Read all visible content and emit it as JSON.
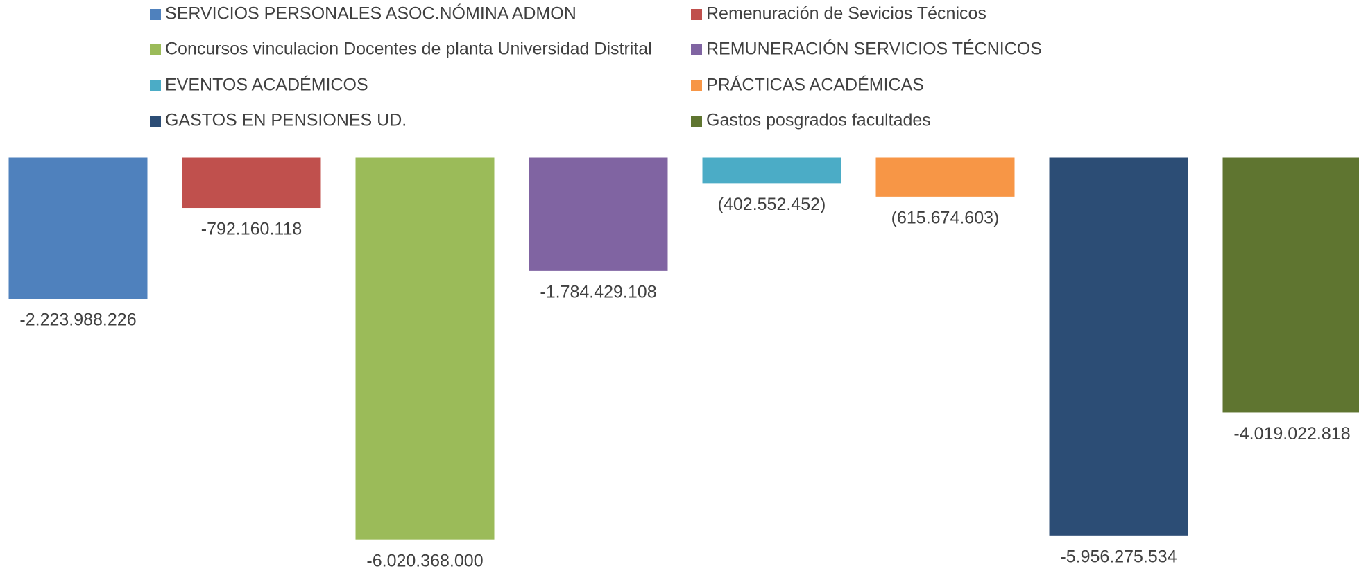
{
  "chart_data": {
    "type": "bar",
    "series": [
      {
        "name": "SERVICIOS PERSONALES ASOC.NÓMINA ADMON",
        "color": "#4f81bd",
        "values": [
          -2223988226
        ],
        "value_labels": [
          "-2.223.988.226"
        ]
      },
      {
        "name": "Remenuración de Sevicios Técnicos",
        "color": "#c0504d",
        "values": [
          -792160118
        ],
        "value_labels": [
          "-792.160.118"
        ]
      },
      {
        "name": "Concursos vinculacion Docentes de planta Universidad Distrital",
        "color": "#9bbb59",
        "values": [
          -6020368000
        ],
        "value_labels": [
          "-6.020.368.000"
        ]
      },
      {
        "name": "REMUNERACIÓN SERVICIOS TÉCNICOS",
        "color": "#8064a2",
        "values": [
          -1784429108
        ],
        "value_labels": [
          "-1.784.429.108"
        ]
      },
      {
        "name": "EVENTOS ACADÉMICOS",
        "color": "#4bacc6",
        "values": [
          -402552452
        ],
        "value_labels": [
          "(402.552.452)"
        ]
      },
      {
        "name": "PRÁCTICAS ACADÉMICAS",
        "color": "#f79646",
        "values": [
          -615674603
        ],
        "value_labels": [
          "(615.674.603)"
        ]
      },
      {
        "name": "GASTOS EN PENSIONES UD.",
        "color": "#2c4d75",
        "values": [
          -5956275534
        ],
        "value_labels": [
          "-5.956.275.534"
        ]
      },
      {
        "name": "Gastos posgrados facultades",
        "color": "#5f7530",
        "values": [
          -4019022818
        ],
        "value_labels": [
          "-4.019.022.818"
        ]
      }
    ],
    "ylim": [
      -6500000000,
      0
    ],
    "legend": "top"
  }
}
